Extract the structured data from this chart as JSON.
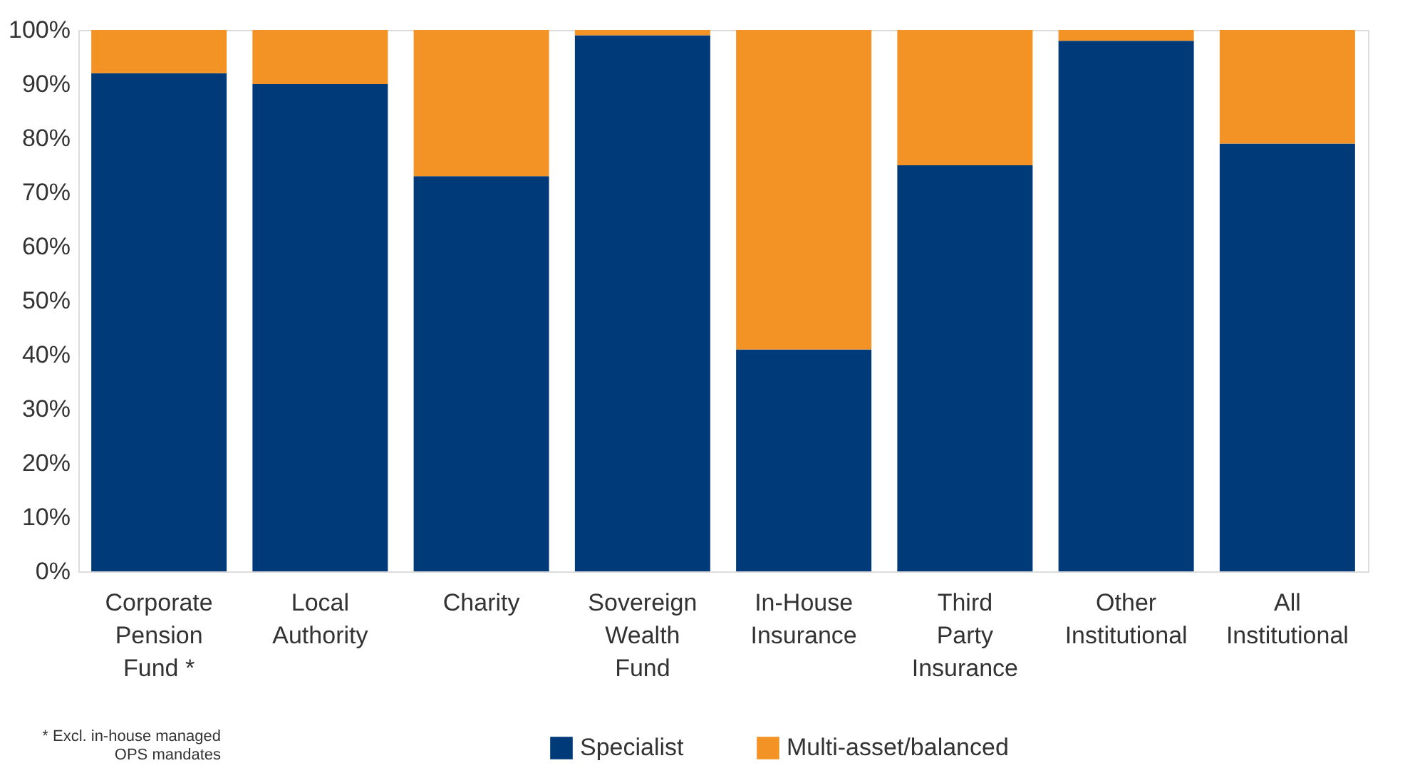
{
  "chart_data": {
    "type": "bar",
    "stacked": true,
    "categories": [
      "Corporate Pension Fund *",
      "Local Authority",
      "Charity",
      "Sovereign Wealth Fund",
      "In-House Insurance",
      "Third Party Insurance",
      "Other Institutional",
      "All Institutional"
    ],
    "series": [
      {
        "name": "Specialist",
        "color": "#003a78",
        "values": [
          92,
          90,
          73,
          99,
          41,
          75,
          98,
          79
        ]
      },
      {
        "name": "Multi-asset/balanced",
        "color": "#f39325",
        "values": [
          8,
          10,
          27,
          1,
          59,
          25,
          2,
          21
        ]
      }
    ],
    "ylim": [
      0,
      100
    ],
    "yticks": [
      {
        "value": 0,
        "label": "0%"
      },
      {
        "value": 10,
        "label": "10%"
      },
      {
        "value": 20,
        "label": "20%"
      },
      {
        "value": 30,
        "label": "30%"
      },
      {
        "value": 40,
        "label": "40%"
      },
      {
        "value": 50,
        "label": "50%"
      },
      {
        "value": 60,
        "label": "60%"
      },
      {
        "value": 70,
        "label": "70%"
      },
      {
        "value": 80,
        "label": "80%"
      },
      {
        "value": 90,
        "label": "90%"
      },
      {
        "value": 100,
        "label": "100%"
      }
    ],
    "grid": false,
    "legend": "bottom",
    "annotations": [
      "* Excl. in-house managed OPS mandates"
    ]
  }
}
